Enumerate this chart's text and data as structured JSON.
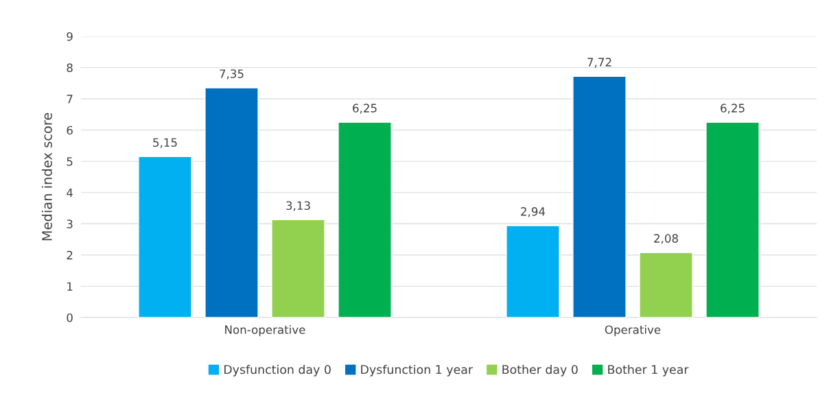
{
  "chart_data": {
    "type": "bar",
    "ylabel": "Median index score",
    "categories": [
      "Non-operative",
      "Operative"
    ],
    "series": [
      {
        "name": "Dysfunction day 0",
        "color": "#00b0f0",
        "values": [
          5.15,
          2.94
        ],
        "value_labels": [
          "5,15",
          "2,94"
        ]
      },
      {
        "name": "Dysfunction 1 year",
        "color": "#0070c0",
        "values": [
          7.35,
          7.72
        ],
        "value_labels": [
          "7,35",
          "7,72"
        ]
      },
      {
        "name": "Bother day 0",
        "color": "#92d050",
        "values": [
          3.13,
          2.08
        ],
        "value_labels": [
          "3,13",
          "2,08"
        ]
      },
      {
        "name": "Bother 1 year",
        "color": "#00b050",
        "values": [
          6.25,
          6.25
        ],
        "value_labels": [
          "6,25",
          "6,25"
        ]
      }
    ],
    "ylim": [
      0,
      9
    ],
    "yticks": [
      0,
      1,
      2,
      3,
      4,
      5,
      6,
      7,
      8,
      9
    ],
    "grid": "y",
    "legend": "bottom"
  }
}
